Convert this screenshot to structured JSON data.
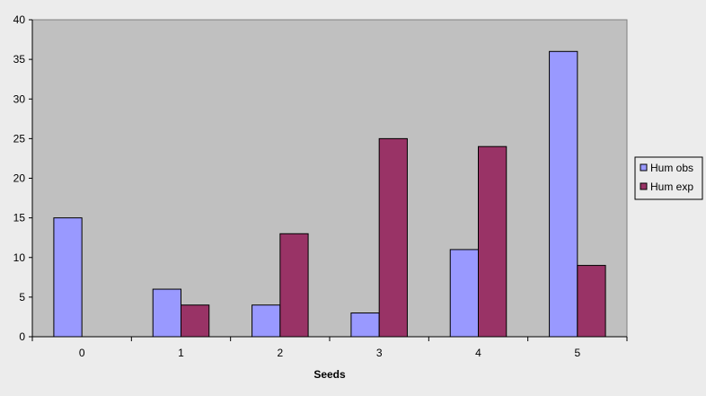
{
  "chart_data": {
    "type": "bar",
    "title": "",
    "xlabel": "Seeds",
    "ylabel": "",
    "categories": [
      "0",
      "1",
      "2",
      "3",
      "4",
      "5"
    ],
    "series": [
      {
        "name": "Hum obs",
        "values": [
          15,
          6,
          4,
          3,
          11,
          36
        ],
        "color": "#9999ff"
      },
      {
        "name": "Hum exp",
        "values": [
          0,
          4,
          13,
          25,
          24,
          9
        ],
        "color": "#993366"
      }
    ],
    "ylim": [
      0,
      40
    ],
    "yticks": [
      0,
      5,
      10,
      15,
      20,
      25,
      30,
      35,
      40
    ],
    "grid": false,
    "legend_position": "right",
    "plot_background": "#c0c0c0",
    "page_background": "#ececec"
  }
}
